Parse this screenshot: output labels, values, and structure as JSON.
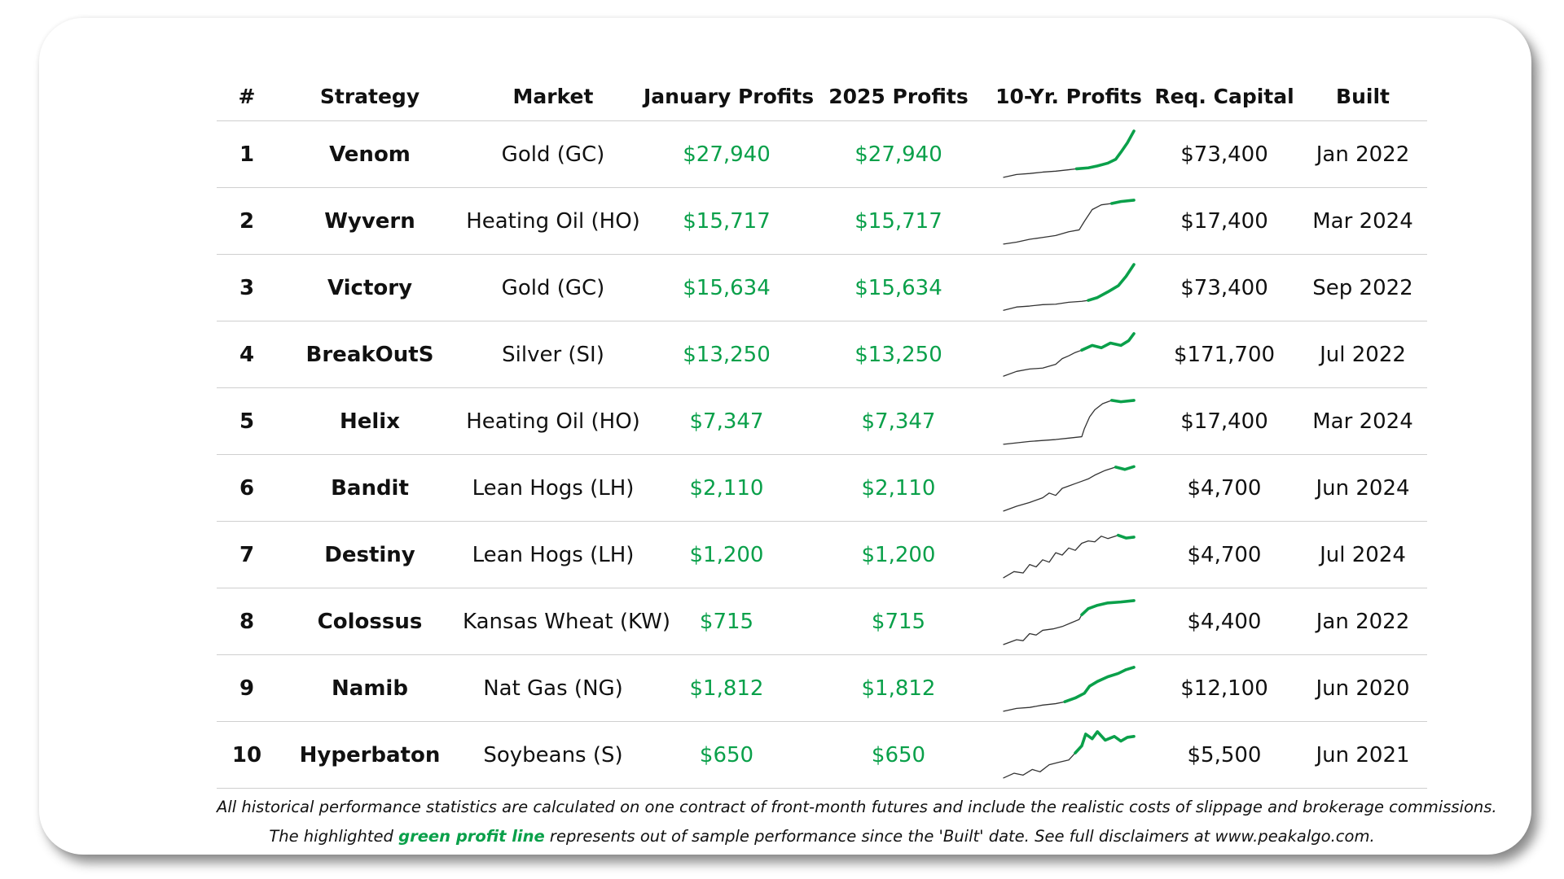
{
  "columns": [
    "#",
    "Strategy",
    "Market",
    "January Profits",
    "2025 Profits",
    "10-Yr. Profits",
    "Req. Capital",
    "Built"
  ],
  "colors": {
    "profit_green": "#0aa04a",
    "line_gray": "#333333"
  },
  "rows": [
    {
      "rank": "1",
      "strategy": "Venom",
      "market": "Gold (GC)",
      "jan": "$27,940",
      "ytd": "$27,940",
      "capital": "$73,400",
      "built": "Jan 2022"
    },
    {
      "rank": "2",
      "strategy": "Wyvern",
      "market": "Heating Oil (HO)",
      "jan": "$15,717",
      "ytd": "$15,717",
      "capital": "$17,400",
      "built": "Mar 2024"
    },
    {
      "rank": "3",
      "strategy": "Victory",
      "market": "Gold (GC)",
      "jan": "$15,634",
      "ytd": "$15,634",
      "capital": "$73,400",
      "built": "Sep 2022"
    },
    {
      "rank": "4",
      "strategy": "BreakOutS",
      "market": "Silver (SI)",
      "jan": "$13,250",
      "ytd": "$13,250",
      "capital": "$171,700",
      "built": "Jul 2022"
    },
    {
      "rank": "5",
      "strategy": "Helix",
      "market": "Heating Oil (HO)",
      "jan": "$7,347",
      "ytd": "$7,347",
      "capital": "$17,400",
      "built": "Mar 2024"
    },
    {
      "rank": "6",
      "strategy": "Bandit",
      "market": "Lean Hogs (LH)",
      "jan": "$2,110",
      "ytd": "$2,110",
      "capital": "$4,700",
      "built": "Jun 2024"
    },
    {
      "rank": "7",
      "strategy": "Destiny",
      "market": "Lean Hogs (LH)",
      "jan": "$1,200",
      "ytd": "$1,200",
      "capital": "$4,700",
      "built": "Jul 2024"
    },
    {
      "rank": "8",
      "strategy": "Colossus",
      "market": "Kansas Wheat (KW)",
      "jan": "$715",
      "ytd": "$715",
      "capital": "$4,400",
      "built": "Jan 2022"
    },
    {
      "rank": "9",
      "strategy": "Namib",
      "market": "Nat Gas (NG)",
      "jan": "$1,812",
      "ytd": "$1,812",
      "capital": "$12,100",
      "built": "Jun 2020"
    },
    {
      "rank": "10",
      "strategy": "Hyperbaton",
      "market": "Soybeans (S)",
      "jan": "$650",
      "ytd": "$650",
      "capital": "$5,500",
      "built": "Jun 2021"
    }
  ],
  "footer": {
    "line1": "All historical performance statistics are calculated on one contract of front-month futures and include the realistic costs of slippage and brokerage commissions.",
    "line2_pre": "The highlighted ",
    "line2_highlight": "green profit line",
    "line2_post": " represents out of sample performance since the 'Built' date. See full disclaimers at www.peakalgo.com."
  },
  "chart_data": {
    "type": "line",
    "title": "10-Yr. Profits",
    "description_units": "cumulative profit, normalized 0-1 over 10 years",
    "x_range": [
      0,
      1
    ],
    "y_range": [
      0,
      1
    ],
    "series": [
      {
        "name": "Venom",
        "built_fraction": 0.56,
        "points": [
          [
            0,
            0.02
          ],
          [
            0.1,
            0.08
          ],
          [
            0.2,
            0.1
          ],
          [
            0.3,
            0.13
          ],
          [
            0.4,
            0.15
          ],
          [
            0.5,
            0.18
          ],
          [
            0.56,
            0.2
          ],
          [
            0.65,
            0.22
          ],
          [
            0.72,
            0.26
          ],
          [
            0.8,
            0.32
          ],
          [
            0.86,
            0.4
          ],
          [
            0.9,
            0.55
          ],
          [
            0.95,
            0.75
          ],
          [
            1,
            1
          ]
        ]
      },
      {
        "name": "Wyvern",
        "built_fraction": 0.83,
        "points": [
          [
            0,
            0.02
          ],
          [
            0.1,
            0.06
          ],
          [
            0.2,
            0.12
          ],
          [
            0.3,
            0.16
          ],
          [
            0.4,
            0.2
          ],
          [
            0.5,
            0.28
          ],
          [
            0.58,
            0.32
          ],
          [
            0.62,
            0.5
          ],
          [
            0.68,
            0.75
          ],
          [
            0.75,
            0.85
          ],
          [
            0.83,
            0.88
          ],
          [
            0.9,
            0.92
          ],
          [
            1,
            0.95
          ]
        ]
      },
      {
        "name": "Victory",
        "built_fraction": 0.65,
        "points": [
          [
            0,
            0.03
          ],
          [
            0.1,
            0.1
          ],
          [
            0.2,
            0.12
          ],
          [
            0.3,
            0.15
          ],
          [
            0.4,
            0.16
          ],
          [
            0.5,
            0.2
          ],
          [
            0.6,
            0.22
          ],
          [
            0.65,
            0.24
          ],
          [
            0.72,
            0.3
          ],
          [
            0.8,
            0.42
          ],
          [
            0.88,
            0.55
          ],
          [
            0.94,
            0.75
          ],
          [
            1,
            1
          ]
        ]
      },
      {
        "name": "BreakOutS",
        "built_fraction": 0.6,
        "points": [
          [
            0,
            0.05
          ],
          [
            0.1,
            0.15
          ],
          [
            0.2,
            0.2
          ],
          [
            0.3,
            0.22
          ],
          [
            0.4,
            0.3
          ],
          [
            0.45,
            0.42
          ],
          [
            0.5,
            0.48
          ],
          [
            0.55,
            0.55
          ],
          [
            0.6,
            0.6
          ],
          [
            0.68,
            0.7
          ],
          [
            0.75,
            0.65
          ],
          [
            0.82,
            0.75
          ],
          [
            0.9,
            0.7
          ],
          [
            0.96,
            0.8
          ],
          [
            1,
            0.95
          ]
        ]
      },
      {
        "name": "Helix",
        "built_fraction": 0.83,
        "points": [
          [
            0,
            0.02
          ],
          [
            0.1,
            0.05
          ],
          [
            0.2,
            0.08
          ],
          [
            0.3,
            0.1
          ],
          [
            0.4,
            0.12
          ],
          [
            0.5,
            0.15
          ],
          [
            0.6,
            0.18
          ],
          [
            0.62,
            0.35
          ],
          [
            0.66,
            0.6
          ],
          [
            0.7,
            0.75
          ],
          [
            0.76,
            0.88
          ],
          [
            0.83,
            0.95
          ],
          [
            0.9,
            0.92
          ],
          [
            1,
            0.95
          ]
        ]
      },
      {
        "name": "Bandit",
        "built_fraction": 0.86,
        "points": [
          [
            0,
            0.02
          ],
          [
            0.1,
            0.12
          ],
          [
            0.2,
            0.2
          ],
          [
            0.3,
            0.3
          ],
          [
            0.35,
            0.4
          ],
          [
            0.4,
            0.35
          ],
          [
            0.45,
            0.5
          ],
          [
            0.5,
            0.55
          ],
          [
            0.55,
            0.6
          ],
          [
            0.6,
            0.65
          ],
          [
            0.65,
            0.7
          ],
          [
            0.7,
            0.78
          ],
          [
            0.78,
            0.88
          ],
          [
            0.86,
            0.95
          ],
          [
            0.93,
            0.9
          ],
          [
            1,
            0.96
          ]
        ]
      },
      {
        "name": "Destiny",
        "built_fraction": 0.88,
        "points": [
          [
            0,
            0.02
          ],
          [
            0.08,
            0.15
          ],
          [
            0.15,
            0.12
          ],
          [
            0.2,
            0.3
          ],
          [
            0.25,
            0.25
          ],
          [
            0.3,
            0.4
          ],
          [
            0.35,
            0.35
          ],
          [
            0.4,
            0.55
          ],
          [
            0.45,
            0.5
          ],
          [
            0.5,
            0.65
          ],
          [
            0.55,
            0.6
          ],
          [
            0.6,
            0.75
          ],
          [
            0.65,
            0.8
          ],
          [
            0.7,
            0.78
          ],
          [
            0.75,
            0.9
          ],
          [
            0.8,
            0.85
          ],
          [
            0.88,
            0.92
          ],
          [
            0.94,
            0.86
          ],
          [
            1,
            0.88
          ]
        ]
      },
      {
        "name": "Colossus",
        "built_fraction": 0.6,
        "points": [
          [
            0,
            0.02
          ],
          [
            0.1,
            0.12
          ],
          [
            0.15,
            0.1
          ],
          [
            0.2,
            0.25
          ],
          [
            0.25,
            0.22
          ],
          [
            0.3,
            0.32
          ],
          [
            0.38,
            0.35
          ],
          [
            0.45,
            0.4
          ],
          [
            0.52,
            0.48
          ],
          [
            0.58,
            0.55
          ],
          [
            0.6,
            0.65
          ],
          [
            0.65,
            0.78
          ],
          [
            0.72,
            0.85
          ],
          [
            0.8,
            0.9
          ],
          [
            0.9,
            0.92
          ],
          [
            1,
            0.95
          ]
        ]
      },
      {
        "name": "Namib",
        "built_fraction": 0.47,
        "points": [
          [
            0,
            0.02
          ],
          [
            0.1,
            0.08
          ],
          [
            0.2,
            0.1
          ],
          [
            0.3,
            0.15
          ],
          [
            0.4,
            0.18
          ],
          [
            0.47,
            0.22
          ],
          [
            0.55,
            0.3
          ],
          [
            0.62,
            0.4
          ],
          [
            0.66,
            0.55
          ],
          [
            0.72,
            0.65
          ],
          [
            0.8,
            0.75
          ],
          [
            0.88,
            0.82
          ],
          [
            0.94,
            0.9
          ],
          [
            1,
            0.95
          ]
        ]
      },
      {
        "name": "Hyperbaton",
        "built_fraction": 0.55,
        "points": [
          [
            0,
            0.02
          ],
          [
            0.08,
            0.12
          ],
          [
            0.15,
            0.08
          ],
          [
            0.22,
            0.2
          ],
          [
            0.28,
            0.15
          ],
          [
            0.35,
            0.3
          ],
          [
            0.42,
            0.35
          ],
          [
            0.5,
            0.4
          ],
          [
            0.55,
            0.55
          ],
          [
            0.6,
            0.7
          ],
          [
            0.63,
            0.95
          ],
          [
            0.68,
            0.85
          ],
          [
            0.72,
            1.0
          ],
          [
            0.78,
            0.82
          ],
          [
            0.85,
            0.9
          ],
          [
            0.9,
            0.8
          ],
          [
            0.95,
            0.88
          ],
          [
            1,
            0.9
          ]
        ]
      }
    ]
  }
}
